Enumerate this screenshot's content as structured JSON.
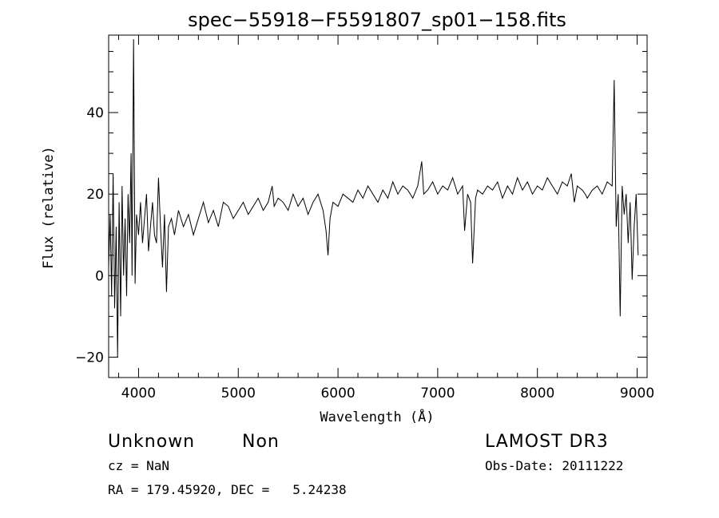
{
  "chart_data": {
    "type": "line",
    "title": "spec−55918−F5591807_sp01−158.fits",
    "xlabel": "Wavelength (Å)",
    "ylabel": "Flux (relative)",
    "xlim": [
      3700,
      9100
    ],
    "ylim": [
      -25,
      59
    ],
    "xticks": [
      4000,
      5000,
      6000,
      7000,
      8000,
      9000
    ],
    "xtick_labels": [
      "4000",
      "5000",
      "6000",
      "7000",
      "8000",
      "9000"
    ],
    "yticks": [
      -20,
      0,
      20,
      40
    ],
    "ytick_labels": [
      "−20",
      "0",
      "20",
      "40"
    ],
    "grid": false,
    "legend": "none",
    "series": [
      {
        "x": [
          3700,
          3715,
          3730,
          3745,
          3760,
          3775,
          3790,
          3805,
          3820,
          3835,
          3850,
          3865,
          3880,
          3895,
          3910,
          3925,
          3935,
          3950,
          3965,
          3980,
          4000,
          4020,
          4040,
          4060,
          4080,
          4100,
          4120,
          4140,
          4160,
          4180,
          4200,
          4220,
          4240,
          4260,
          4280,
          4300,
          4330,
          4360,
          4400,
          4450,
          4500,
          4550,
          4600,
          4650,
          4700,
          4750,
          4800,
          4850,
          4900,
          4950,
          5000,
          5050,
          5100,
          5150,
          5200,
          5250,
          5300,
          5340,
          5360,
          5400,
          5450,
          5500,
          5550,
          5600,
          5650,
          5700,
          5750,
          5800,
          5850,
          5880,
          5900,
          5920,
          5950,
          6000,
          6050,
          6100,
          6150,
          6200,
          6250,
          6300,
          6350,
          6400,
          6450,
          6500,
          6550,
          6600,
          6650,
          6700,
          6750,
          6800,
          6840,
          6860,
          6900,
          6950,
          7000,
          7050,
          7100,
          7150,
          7200,
          7250,
          7270,
          7300,
          7330,
          7350,
          7380,
          7400,
          7450,
          7500,
          7550,
          7600,
          7650,
          7700,
          7750,
          7800,
          7850,
          7900,
          7950,
          8000,
          8050,
          8100,
          8150,
          8200,
          8250,
          8300,
          8340,
          8370,
          8400,
          8450,
          8480,
          8500,
          8550,
          8600,
          8650,
          8700,
          8750,
          8770,
          8790,
          8810,
          8830,
          8850,
          8870,
          8890,
          8910,
          8930,
          8950,
          8970,
          8990,
          9010
        ],
        "y": [
          2,
          15,
          -5,
          25,
          -8,
          12,
          -20,
          18,
          -10,
          22,
          0,
          14,
          -5,
          20,
          8,
          30,
          0,
          58,
          -2,
          15,
          10,
          18,
          8,
          14,
          20,
          6,
          12,
          18,
          10,
          8,
          24,
          12,
          2,
          15,
          -4,
          12,
          14,
          10,
          16,
          12,
          15,
          10,
          14,
          18,
          13,
          16,
          12,
          18,
          17,
          14,
          16,
          18,
          15,
          17,
          19,
          16,
          18,
          22,
          17,
          19,
          18,
          16,
          20,
          17,
          19,
          15,
          18,
          20,
          16,
          11,
          5,
          14,
          18,
          17,
          20,
          19,
          18,
          21,
          19,
          22,
          20,
          18,
          21,
          19,
          23,
          20,
          22,
          21,
          19,
          22,
          28,
          20,
          21,
          23,
          20,
          22,
          21,
          24,
          20,
          22,
          11,
          20,
          18,
          3,
          19,
          21,
          20,
          22,
          21,
          23,
          19,
          22,
          20,
          24,
          21,
          23,
          20,
          22,
          21,
          24,
          22,
          20,
          23,
          22,
          25,
          18,
          22,
          21,
          20,
          19,
          21,
          22,
          20,
          23,
          22,
          48,
          12,
          20,
          -10,
          22,
          15,
          20,
          8,
          18,
          -1,
          12,
          20,
          5
        ]
      }
    ]
  },
  "info": {
    "class": "Unknown",
    "subclass": "Non",
    "survey": "LAMOST DR3",
    "cz": "cz = NaN",
    "obs_date": "Obs-Date: 20111222",
    "radec": "RA = 179.45920, DEC =   5.24238"
  }
}
